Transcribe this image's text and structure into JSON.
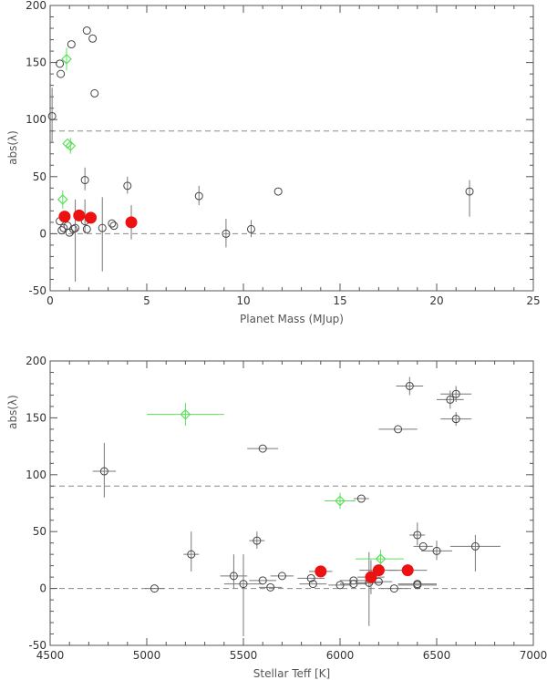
{
  "chart_data": [
    {
      "type": "scatter",
      "title": "",
      "xlabel": "Planet Mass (MJup)",
      "ylabel": "abs(λ)",
      "xlim": [
        0,
        25
      ],
      "ylim": [
        -50,
        200
      ],
      "xticks": [
        0,
        5,
        10,
        15,
        20,
        25
      ],
      "yticks": [
        -50,
        0,
        50,
        100,
        150,
        200
      ],
      "reference_lines": [
        0,
        90
      ],
      "grid": false,
      "series": [
        {
          "marker": "open-circle",
          "color": "#444444",
          "points": [
            {
              "x": 0.1,
              "y": 103,
              "ylo": 80,
              "yhi": 128
            },
            {
              "x": 0.5,
              "y": 149
            },
            {
              "x": 0.55,
              "y": 140
            },
            {
              "x": 1.1,
              "y": 166
            },
            {
              "x": 1.9,
              "y": 178
            },
            {
              "x": 2.2,
              "y": 171
            },
            {
              "x": 2.3,
              "y": 123
            },
            {
              "x": 1.8,
              "y": 47,
              "ylo": 38,
              "yhi": 58
            },
            {
              "x": 4.0,
              "y": 42,
              "ylo": 35,
              "yhi": 50
            },
            {
              "x": 7.7,
              "y": 33,
              "ylo": 25,
              "yhi": 42
            },
            {
              "x": 11.8,
              "y": 37
            },
            {
              "x": 21.7,
              "y": 37,
              "ylo": 15,
              "yhi": 47
            },
            {
              "x": 9.1,
              "y": 0,
              "ylo": -12,
              "yhi": 13
            },
            {
              "x": 10.4,
              "y": 4,
              "ylo": -3,
              "yhi": 12
            },
            {
              "x": 0.5,
              "y": 11
            },
            {
              "x": 0.7,
              "y": 5
            },
            {
              "x": 0.6,
              "y": 3
            },
            {
              "x": 0.9,
              "y": 7
            },
            {
              "x": 1.0,
              "y": 1
            },
            {
              "x": 1.2,
              "y": 4
            },
            {
              "x": 1.3,
              "y": 5,
              "ylo": -42,
              "yhi": 30
            },
            {
              "x": 1.8,
              "y": 11,
              "ylo": 0,
              "yhi": 30
            },
            {
              "x": 1.9,
              "y": 4
            },
            {
              "x": 2.7,
              "y": 5,
              "ylo": -33,
              "yhi": 32
            },
            {
              "x": 3.2,
              "y": 9
            },
            {
              "x": 3.3,
              "y": 7
            }
          ]
        },
        {
          "marker": "open-diamond",
          "color": "#5be05b",
          "points": [
            {
              "x": 0.85,
              "y": 153,
              "ylo": 143,
              "yhi": 163
            },
            {
              "x": 0.9,
              "y": 79
            },
            {
              "x": 1.05,
              "y": 77,
              "ylo": 70,
              "yhi": 84
            },
            {
              "x": 0.65,
              "y": 30,
              "ylo": 22,
              "yhi": 38
            }
          ]
        },
        {
          "marker": "filled-circle",
          "color": "#ee1111",
          "points": [
            {
              "x": 0.75,
              "y": 15
            },
            {
              "x": 1.5,
              "y": 16
            },
            {
              "x": 2.1,
              "y": 14
            },
            {
              "x": 4.2,
              "y": 10,
              "ylo": -5,
              "yhi": 25
            }
          ]
        }
      ]
    },
    {
      "type": "scatter",
      "title": "",
      "xlabel": "Stellar Teff [K]",
      "ylabel": "abs(λ)",
      "xlim": [
        4500,
        7000
      ],
      "ylim": [
        -50,
        200
      ],
      "xticks": [
        4500,
        5000,
        5500,
        6000,
        6500,
        7000
      ],
      "yticks": [
        -50,
        0,
        50,
        100,
        150,
        200
      ],
      "reference_lines": [
        0,
        90
      ],
      "grid": false,
      "series": [
        {
          "marker": "open-circle",
          "color": "#444444",
          "points": [
            {
              "x": 6360,
              "y": 178,
              "xlo": 6290,
              "xhi": 6430,
              "ylo": 170,
              "yhi": 186
            },
            {
              "x": 6600,
              "y": 171,
              "xlo": 6520,
              "xhi": 6680,
              "ylo": 164,
              "yhi": 178
            },
            {
              "x": 6570,
              "y": 166,
              "xlo": 6500,
              "xhi": 6640,
              "ylo": 158,
              "yhi": 174
            },
            {
              "x": 6600,
              "y": 149,
              "xlo": 6520,
              "xhi": 6680,
              "ylo": 143,
              "yhi": 155
            },
            {
              "x": 6300,
              "y": 140,
              "xlo": 6200,
              "xhi": 6400
            },
            {
              "x": 5600,
              "y": 123,
              "xlo": 5520,
              "xhi": 5680
            },
            {
              "x": 4780,
              "y": 103,
              "xlo": 4720,
              "xhi": 4840,
              "ylo": 80,
              "yhi": 128
            },
            {
              "x": 6110,
              "y": 79,
              "xlo": 6070,
              "xhi": 6150
            },
            {
              "x": 5230,
              "y": 30,
              "xlo": 5190,
              "xhi": 5270,
              "ylo": 15,
              "yhi": 50
            },
            {
              "x": 5570,
              "y": 42,
              "xlo": 5530,
              "xhi": 5610,
              "ylo": 35,
              "yhi": 50
            },
            {
              "x": 6400,
              "y": 47,
              "xlo": 6360,
              "xhi": 6440,
              "ylo": 38,
              "yhi": 58
            },
            {
              "x": 6430,
              "y": 37,
              "xlo": 6380,
              "xhi": 6480
            },
            {
              "x": 6500,
              "y": 33,
              "xlo": 6420,
              "xhi": 6580,
              "ylo": 25,
              "yhi": 42
            },
            {
              "x": 6700,
              "y": 37,
              "xlo": 6570,
              "xhi": 6830,
              "ylo": 15,
              "yhi": 47
            },
            {
              "x": 5040,
              "y": 0,
              "xlo": 4990,
              "xhi": 5090
            },
            {
              "x": 5450,
              "y": 11,
              "xlo": 5380,
              "xhi": 5520,
              "ylo": 0,
              "yhi": 30
            },
            {
              "x": 5500,
              "y": 4,
              "xlo": 5400,
              "xhi": 5600,
              "ylo": -42,
              "yhi": 30
            },
            {
              "x": 5600,
              "y": 7,
              "xlo": 5530,
              "xhi": 5670
            },
            {
              "x": 5640,
              "y": 1,
              "xlo": 5580,
              "xhi": 5700
            },
            {
              "x": 5700,
              "y": 11,
              "xlo": 5640,
              "xhi": 5760
            },
            {
              "x": 5850,
              "y": 9,
              "xlo": 5780,
              "xhi": 5920
            },
            {
              "x": 5860,
              "y": 4,
              "xlo": 5790,
              "xhi": 5930
            },
            {
              "x": 6000,
              "y": 3,
              "xlo": 5940,
              "xhi": 6060
            },
            {
              "x": 6070,
              "y": 7,
              "xlo": 6000,
              "xhi": 6140
            },
            {
              "x": 6070,
              "y": 4,
              "xlo": 6000,
              "xhi": 6140
            },
            {
              "x": 6150,
              "y": 5,
              "xlo": 6080,
              "xhi": 6220,
              "ylo": -33,
              "yhi": 32
            },
            {
              "x": 6200,
              "y": 6,
              "xlo": 6130,
              "xhi": 6270
            },
            {
              "x": 6280,
              "y": 0,
              "xlo": 6210,
              "xhi": 6350
            },
            {
              "x": 6400,
              "y": 4,
              "xlo": 6300,
              "xhi": 6500
            },
            {
              "x": 6400,
              "y": 3,
              "xlo": 6300,
              "xhi": 6500
            }
          ]
        },
        {
          "marker": "open-diamond",
          "color": "#5be05b",
          "points": [
            {
              "x": 5200,
              "y": 153,
              "xlo": 5000,
              "xhi": 5400,
              "ylo": 143,
              "yhi": 163
            },
            {
              "x": 6000,
              "y": 77,
              "xlo": 5920,
              "xhi": 6080,
              "ylo": 70,
              "yhi": 84
            },
            {
              "x": 6210,
              "y": 26,
              "xlo": 6080,
              "xhi": 6330,
              "ylo": 18,
              "yhi": 34
            }
          ]
        },
        {
          "marker": "filled-circle",
          "color": "#ee1111",
          "points": [
            {
              "x": 5900,
              "y": 15,
              "xlo": 5840,
              "xhi": 5960
            },
            {
              "x": 6160,
              "y": 10,
              "xlo": 6090,
              "xhi": 6230,
              "ylo": -5,
              "yhi": 25
            },
            {
              "x": 6200,
              "y": 16,
              "xlo": 6100,
              "xhi": 6300
            },
            {
              "x": 6350,
              "y": 16,
              "xlo": 6250,
              "xhi": 6450
            }
          ]
        }
      ]
    }
  ]
}
